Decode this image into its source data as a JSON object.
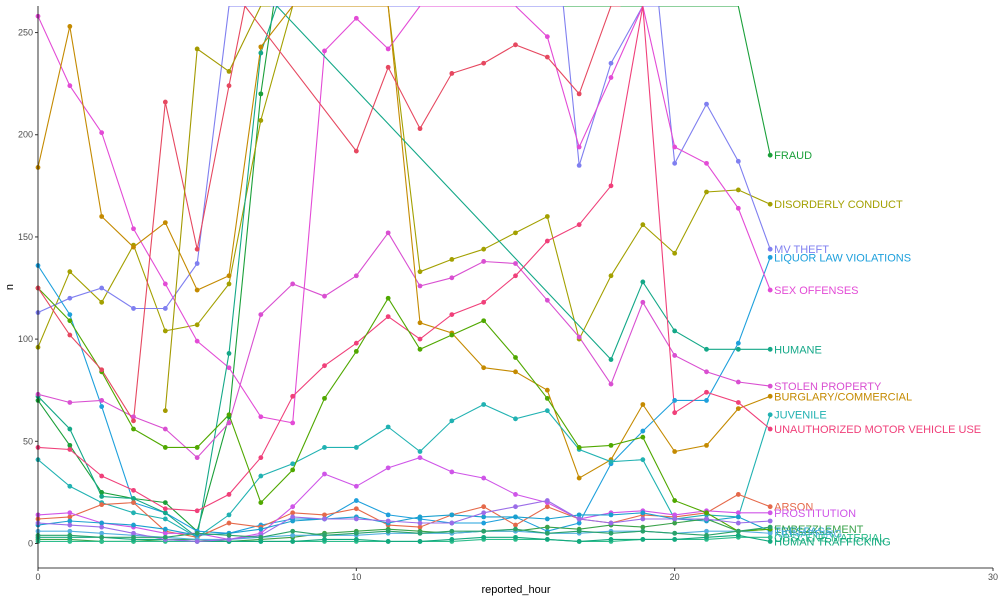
{
  "chart_data": {
    "type": "line",
    "xlabel": "reported_hour",
    "ylabel": "n",
    "xlim": [
      0,
      30
    ],
    "ylim": [
      -12,
      263
    ],
    "x_ticks": [
      0,
      10,
      20,
      30
    ],
    "y_ticks": [
      0,
      50,
      100,
      150,
      200,
      250
    ],
    "grid": false,
    "legend": "direct labels at line ends",
    "series": [
      {
        "name": "FRAUD",
        "color": "#1ba03a",
        "label_y": 190,
        "x": [
          0,
          1,
          2,
          3,
          4,
          5,
          6,
          7,
          7.4,
          22,
          23
        ],
        "y": [
          70,
          48,
          25,
          22,
          20,
          6,
          62,
          220,
          263,
          263,
          190
        ]
      },
      {
        "name": "DISORDERLY CONDUCT",
        "color": "#a3a000",
        "label_y": 166,
        "x": [
          0,
          1,
          2,
          3,
          4,
          5,
          6,
          7,
          8,
          9,
          10,
          11,
          12,
          13,
          14,
          15,
          16,
          17,
          18,
          19,
          20,
          21,
          22,
          23
        ],
        "y": [
          96,
          133,
          118,
          146,
          104,
          107,
          127,
          207,
          263,
          263,
          263,
          263,
          133,
          139,
          144,
          152,
          160,
          100,
          131,
          156,
          142,
          172,
          173,
          166
        ]
      },
      {
        "name": "MV THEFT",
        "color": "#7f7ff0",
        "label_y": 144,
        "x": [
          0,
          1,
          2,
          3,
          4,
          5,
          6,
          16.5,
          17,
          18,
          19,
          19.5,
          20,
          21,
          22,
          23
        ],
        "y": [
          113,
          120,
          125,
          115,
          115,
          137,
          263,
          263,
          185,
          235,
          263,
          263,
          186,
          215,
          187,
          144
        ]
      },
      {
        "name": "LIQUOR LAW VIOLATIONS",
        "color": "#1ea0dc",
        "label_y": 140,
        "x": [
          0,
          1,
          2,
          3,
          4,
          5,
          6,
          7,
          8,
          9,
          10,
          11,
          12,
          13,
          14,
          15,
          16,
          17,
          18,
          19,
          20,
          21,
          22,
          23
        ],
        "y": [
          136,
          112,
          67,
          20,
          15,
          6,
          5,
          9,
          12,
          12,
          21,
          14,
          12,
          10,
          10,
          13,
          6,
          10,
          39,
          55,
          70,
          70,
          98,
          140
        ]
      },
      {
        "name": "SEX OFFENSES",
        "color": "#e34bd6",
        "label_y": 124,
        "x": [
          0,
          1,
          2,
          3,
          4,
          5,
          6,
          7,
          8,
          9,
          10,
          11,
          12,
          13,
          14,
          15,
          16,
          17,
          18,
          19,
          20,
          21,
          22,
          23
        ],
        "y": [
          258,
          224,
          201,
          154,
          127,
          99,
          86,
          62,
          59,
          241,
          257,
          242,
          263,
          263,
          263,
          263,
          248,
          194,
          228,
          263,
          194,
          186,
          164,
          124
        ]
      },
      {
        "name": "HUMANE",
        "color": "#14a888",
        "label_y": 95,
        "x": [
          0,
          1,
          2,
          3,
          4,
          5,
          6,
          7,
          7.5,
          18,
          19,
          20,
          21,
          22,
          23
        ],
        "y": [
          72,
          56,
          23,
          22,
          15,
          3,
          93,
          240,
          263,
          90,
          128,
          104,
          95,
          95,
          95
        ]
      },
      {
        "name": "STOLEN PROPERTY",
        "color": "#d94fd1",
        "label_y": 77,
        "x": [
          0,
          1,
          2,
          3,
          4,
          5,
          6,
          7,
          8,
          9,
          10,
          11,
          12,
          13,
          14,
          15,
          16,
          17,
          18,
          19,
          20,
          21,
          22,
          23
        ],
        "y": [
          73,
          69,
          70,
          62,
          56,
          42,
          59,
          112,
          127,
          121,
          131,
          152,
          126,
          130,
          138,
          137,
          119,
          101,
          78,
          118,
          92,
          84,
          79,
          77
        ]
      },
      {
        "name": "BURGLARY/COMMERCIAL",
        "color": "#c48a00",
        "label_y": 72,
        "x": [
          0,
          1,
          2,
          3,
          4,
          5,
          6,
          7,
          8,
          9,
          10,
          11,
          12,
          13,
          14,
          15,
          16,
          17,
          18,
          19,
          20,
          21,
          22,
          23
        ],
        "y": [
          184,
          253,
          160,
          145,
          157,
          124,
          131,
          243,
          263,
          263,
          263,
          263,
          108,
          103,
          86,
          84,
          75,
          32,
          41,
          68,
          45,
          48,
          66,
          72
        ]
      },
      {
        "name": "JUVENILE",
        "color": "#21b2b2",
        "label_y": 63,
        "x": [
          0,
          1,
          2,
          3,
          4,
          5,
          6,
          7,
          8,
          9,
          10,
          11,
          12,
          13,
          14,
          15,
          16,
          17,
          18,
          19,
          20,
          21,
          22,
          23
        ],
        "y": [
          41,
          28,
          20,
          15,
          12,
          3,
          14,
          33,
          39,
          47,
          47,
          57,
          45,
          60,
          68,
          61,
          65,
          46,
          40,
          41,
          12,
          14,
          13,
          63
        ]
      },
      {
        "name": "UNAUTHORIZED MOTOR VEHICLE USE",
        "color": "#f0407a",
        "label_y": 56,
        "x": [
          0,
          1,
          2,
          3,
          4,
          5,
          6,
          7,
          8,
          9,
          10,
          11,
          12,
          13,
          14,
          15,
          16,
          17,
          18,
          19,
          20,
          21,
          22,
          23
        ],
        "y": [
          47,
          46,
          33,
          26,
          17,
          16,
          24,
          42,
          72,
          87,
          98,
          111,
          100,
          112,
          118,
          131,
          148,
          156,
          175,
          263,
          64,
          74,
          69,
          56
        ]
      },
      {
        "name": "ARSON",
        "color": "#e5694a",
        "label_y": 18,
        "x": [
          0,
          1,
          2,
          3,
          4,
          5,
          6,
          7,
          8,
          9,
          10,
          11,
          12,
          13,
          14,
          15,
          16,
          17,
          18,
          19,
          20,
          21,
          22,
          23
        ],
        "y": [
          12,
          13,
          19,
          20,
          6,
          3,
          10,
          8,
          15,
          14,
          17,
          9,
          8,
          14,
          18,
          9,
          18,
          12,
          10,
          14,
          13,
          15,
          24,
          18
        ]
      },
      {
        "name": "PROSTITUTION",
        "color": "#cf55e8",
        "label_y": 15,
        "x": [
          0,
          1,
          2,
          3,
          4,
          5,
          6,
          7,
          8,
          9,
          10,
          11,
          12,
          13,
          14,
          15,
          16,
          17,
          18,
          19,
          20,
          21,
          22,
          23
        ],
        "y": [
          14,
          15,
          10,
          8,
          5,
          5,
          2,
          5,
          18,
          34,
          28,
          37,
          42,
          35,
          32,
          24,
          20,
          12,
          15,
          16,
          14,
          16,
          15,
          15
        ]
      },
      {
        "name": "TRESPASS",
        "color": "#1aa0cf",
        "label_y": 6,
        "x": [
          0,
          1,
          2,
          3,
          4,
          5,
          6,
          7,
          8,
          9,
          10,
          11,
          12,
          13,
          14,
          15,
          16,
          17,
          18,
          19,
          20,
          21,
          22,
          23
        ],
        "y": [
          9,
          11,
          10,
          9,
          7,
          4,
          5,
          7,
          11,
          12,
          13,
          10,
          13,
          14,
          13,
          13,
          12,
          14,
          14,
          15,
          12,
          11,
          13,
          6
        ]
      },
      {
        "name": "EMBEZZLEMENT",
        "color": "#3aa24a",
        "label_y": 7,
        "x": [
          0,
          1,
          2,
          3,
          4,
          5,
          6,
          7,
          8,
          9,
          10,
          11,
          12,
          13,
          14,
          15,
          16,
          17,
          18,
          19,
          20,
          21,
          22,
          23
        ],
        "y": [
          2,
          2,
          1,
          1,
          2,
          2,
          1,
          2,
          3,
          5,
          6,
          7,
          6,
          5,
          6,
          6,
          8,
          7,
          9,
          8,
          10,
          12,
          6,
          7
        ]
      },
      {
        "name": "KIDNAPPING",
        "color": "#55b0e0",
        "label_y": 5,
        "x": [
          0,
          1,
          2,
          3,
          4,
          5,
          6,
          7,
          8,
          9,
          10,
          11,
          12,
          13,
          14,
          15,
          16,
          17,
          18,
          19,
          20,
          21,
          22,
          23
        ],
        "y": [
          6,
          6,
          5,
          4,
          3,
          2,
          2,
          3,
          4,
          4,
          4,
          5,
          5,
          5,
          6,
          6,
          5,
          5,
          6,
          6,
          5,
          6,
          6,
          5
        ]
      },
      {
        "name": "OBSCENE MATERIAL",
        "color": "#2ebd8c",
        "label_y": 3,
        "x": [
          0,
          1,
          2,
          3,
          4,
          5,
          6,
          7,
          8,
          9,
          10,
          11,
          12,
          13,
          14,
          15,
          16,
          17,
          18,
          19,
          20,
          21,
          22,
          23
        ],
        "y": [
          1,
          1,
          1,
          1,
          1,
          1,
          1,
          1,
          1,
          1,
          1,
          1,
          1,
          1,
          2,
          2,
          2,
          1,
          1,
          2,
          2,
          2,
          3,
          3
        ]
      },
      {
        "name": "HUMAN TRAFFICKING",
        "color": "#13a97e",
        "label_y": 1,
        "x": [
          0,
          1,
          2,
          3,
          4,
          5,
          6,
          7,
          8,
          9,
          10,
          11,
          12,
          13,
          14,
          15,
          16,
          17,
          18,
          19,
          20,
          21,
          22,
          23
        ],
        "y": [
          3,
          3,
          3,
          2,
          2,
          1,
          1,
          1,
          1,
          2,
          2,
          1,
          1,
          2,
          3,
          3,
          2,
          1,
          2,
          2,
          2,
          3,
          4,
          1
        ]
      },
      {
        "name": "",
        "color": "#50a800",
        "x": [
          0,
          1,
          2,
          3,
          4,
          5,
          6,
          7,
          8,
          9,
          10,
          11,
          12,
          13,
          14,
          15,
          16,
          17,
          18,
          19,
          20,
          21,
          22,
          23
        ],
        "y": [
          125,
          109,
          84,
          56,
          47,
          47,
          63,
          20,
          36,
          71,
          94,
          120,
          95,
          102,
          109,
          91,
          71,
          47,
          48,
          52,
          21,
          15,
          6,
          7
        ]
      },
      {
        "name": "",
        "color": "#e64860",
        "x": [
          0,
          1,
          2,
          3,
          4,
          5,
          6,
          6.5,
          10,
          11,
          12,
          13,
          14,
          15,
          16,
          17,
          18,
          18.3
        ],
        "y": [
          125,
          102,
          85,
          60,
          216,
          144,
          224,
          263,
          192,
          233,
          203,
          230,
          235,
          244,
          238,
          220,
          263,
          263
        ]
      },
      {
        "name": "",
        "color": "#9b6de8",
        "x": [
          0,
          1,
          2,
          3,
          4,
          5,
          6,
          7,
          8,
          9,
          10,
          11,
          12,
          13,
          14,
          15,
          16,
          17,
          18,
          19,
          20,
          21,
          22,
          23
        ],
        "y": [
          10,
          9,
          8,
          5,
          2,
          1,
          2,
          4,
          13,
          12,
          12,
          11,
          10,
          10,
          15,
          18,
          21,
          12,
          10,
          12,
          12,
          12,
          10,
          11
        ]
      },
      {
        "name": "",
        "color": "#a39a00",
        "x": [
          4,
          5,
          6,
          7,
          7.3
        ],
        "y": [
          65,
          242,
          231,
          263,
          263
        ]
      },
      {
        "name": "",
        "color": "#2aa26a",
        "x": [
          0,
          1,
          2,
          3,
          4,
          5,
          6,
          7,
          8,
          9,
          10,
          11,
          12,
          13,
          14,
          15,
          16,
          17,
          18,
          19,
          20,
          21,
          22,
          23
        ],
        "y": [
          4,
          4,
          3,
          3,
          3,
          5,
          4,
          3,
          6,
          4,
          5,
          6,
          5,
          6,
          6,
          7,
          5,
          6,
          5,
          6,
          5,
          4,
          6,
          8
        ]
      }
    ]
  }
}
